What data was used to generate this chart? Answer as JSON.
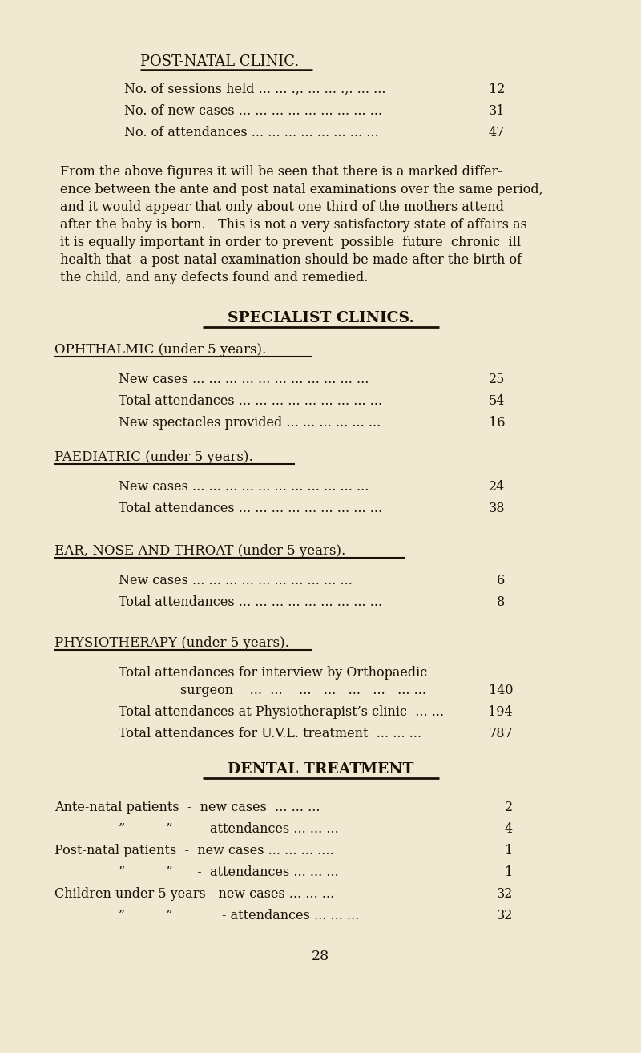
{
  "bg_color": "#f0e8d0",
  "text_color": "#1a1008",
  "page_number": "28",
  "section1_title": "POST-NATAL CLINIC.",
  "section1_items": [
    {
      "label": "No. of sessions held ... ... .,. ... ... .,. ... ...",
      "value": "12"
    },
    {
      "label": "No. of new cases ... ... ... ... ... ... ... ... ...",
      "value": "31"
    },
    {
      "label": "No. of attendances ... ... ... ... ... ... ... ...",
      "value": "47"
    }
  ],
  "para_lines": [
    "From the above figures it will be seen that there is a marked differ-",
    "ence between the ante and post natal examinations over the same period,",
    "and it would appear that only about one third of the mothers attend",
    "after the baby is born.   This is not a very satisfactory state of affairs as",
    "it is equally important in order to prevent  possible  future  chronic  ill",
    "health that  a post-natal examination should be made after the birth of",
    "the child, and any defects found and remedied."
  ],
  "section2_title": "SPECIALIST CLINICS.",
  "subsection_ophthalmic": "OPHTHALMIC (under 5 years).",
  "ophthalmic_items": [
    {
      "label": "New cases ... ... ... ... ... ... ... ... ... ... ...",
      "value": "25"
    },
    {
      "label": "Total attendances ... ... ... ... ... ... ... ... ...",
      "value": "54"
    },
    {
      "label": "New spectacles provided ... ... ... ... ... ...",
      "value": "16"
    }
  ],
  "subsection_paediatric": "PAEDIATRIC (under 5 years).",
  "paediatric_items": [
    {
      "label": "New cases ... ... ... ... ... ... ... ... ... ... ...",
      "value": "24"
    },
    {
      "label": "Total attendances ... ... ... ... ... ... ... ... ...",
      "value": "38"
    }
  ],
  "subsection_ent": "EAR, NOSE AND THROAT (under 5 years).",
  "ent_items": [
    {
      "label": "New cases ... ... ... ... ... ... ... ... ... ...",
      "value": "6"
    },
    {
      "label": "Total attendances ... ... ... ... ... ... ... ... ...",
      "value": "8"
    }
  ],
  "subsection_physio": "PHYSIOTHERAPY (under 5 years).",
  "section3_title": "DENTAL TREATMENT",
  "dental_items": [
    {
      "label": "Ante-natal patients  -  new cases  ... ... ...",
      "indent": 0,
      "value": "2"
    },
    {
      "label": "”          ”      -  attendances ... ... ...",
      "indent": 1,
      "value": "4"
    },
    {
      "label": "Post-natal patients  -  new cases ... ... ... ....",
      "indent": 0,
      "value": "1"
    },
    {
      "label": "”          ”      -  attendances ... ... ...",
      "indent": 1,
      "value": "1"
    },
    {
      "label": "Children under 5 years - new cases ... ... ...",
      "indent": 0,
      "value": "32"
    },
    {
      "label": "”          ”            - attendances ... ... ...",
      "indent": 1,
      "value": "32"
    }
  ]
}
